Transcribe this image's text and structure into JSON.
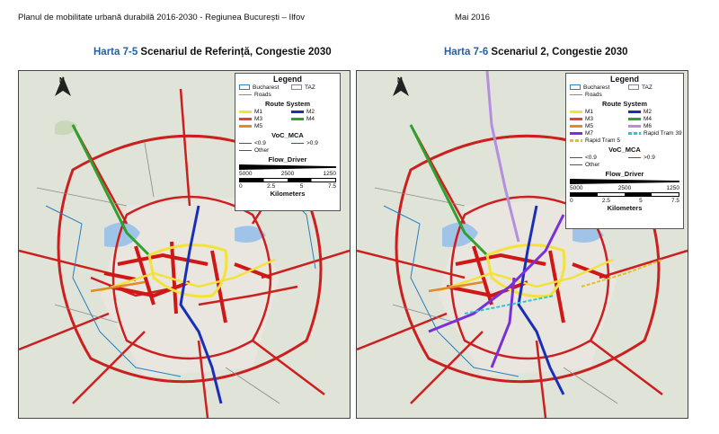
{
  "header": {
    "left": "Planul de mobilitate urbană durabilă 2016-2030 - Regiunea București – Ilfov",
    "right": "Mai 2016"
  },
  "maps": [
    {
      "number": "Harta 7-5",
      "title": "Scenariul de Referință, Congestie 2030",
      "legend": {
        "title": "Legend",
        "bucharest": "Bucharest",
        "taz": "TAZ",
        "roads": "Roads",
        "route_system": "Route System",
        "routes": [
          {
            "label": "M1",
            "color": "#f2e23a"
          },
          {
            "label": "M2",
            "color": "#1a2fb8"
          },
          {
            "label": "M3",
            "color": "#e0452a"
          },
          {
            "label": "M4",
            "color": "#2fa12f"
          },
          {
            "label": "M5",
            "color": "#e08a2a"
          }
        ],
        "voc": "VoC_MCA",
        "voc_low": "<0.9",
        "voc_high": ">0.9",
        "other": "Other",
        "flow": "Flow_Driver",
        "flow_vals": [
          "5000",
          "2500",
          "1250"
        ],
        "scale_vals": [
          "0",
          "2.5",
          "5",
          "7.5"
        ],
        "km": "Kilometers"
      }
    },
    {
      "number": "Harta 7-6",
      "title": "Scenariul 2, Congestie 2030",
      "legend": {
        "title": "Legend",
        "bucharest": "Bucharest",
        "taz": "TAZ",
        "roads": "Roads",
        "route_system": "Route System",
        "routes": [
          {
            "label": "M1",
            "color": "#f2e23a"
          },
          {
            "label": "M2",
            "color": "#1a2fb8"
          },
          {
            "label": "M3",
            "color": "#e0452a"
          },
          {
            "label": "M4",
            "color": "#2fa12f"
          },
          {
            "label": "M5",
            "color": "#e08a2a"
          },
          {
            "label": "M6",
            "color": "#b58ee0"
          },
          {
            "label": "M7",
            "color": "#7a2fd8"
          },
          {
            "label": "Rapid Tram 39",
            "color": "#2fc4d8"
          },
          {
            "label": "Rapid Tram 5",
            "color": "#e0c02a"
          }
        ],
        "voc": "VoC_MCA",
        "voc_low": "<0.9",
        "voc_high": ">0.9",
        "other": "Other",
        "flow": "Flow_Driver",
        "flow_vals": [
          "5000",
          "2500",
          "1250"
        ],
        "scale_vals": [
          "0",
          "2.5",
          "5",
          "7.5"
        ],
        "km": "Kilometers"
      }
    }
  ],
  "north_label": "N"
}
